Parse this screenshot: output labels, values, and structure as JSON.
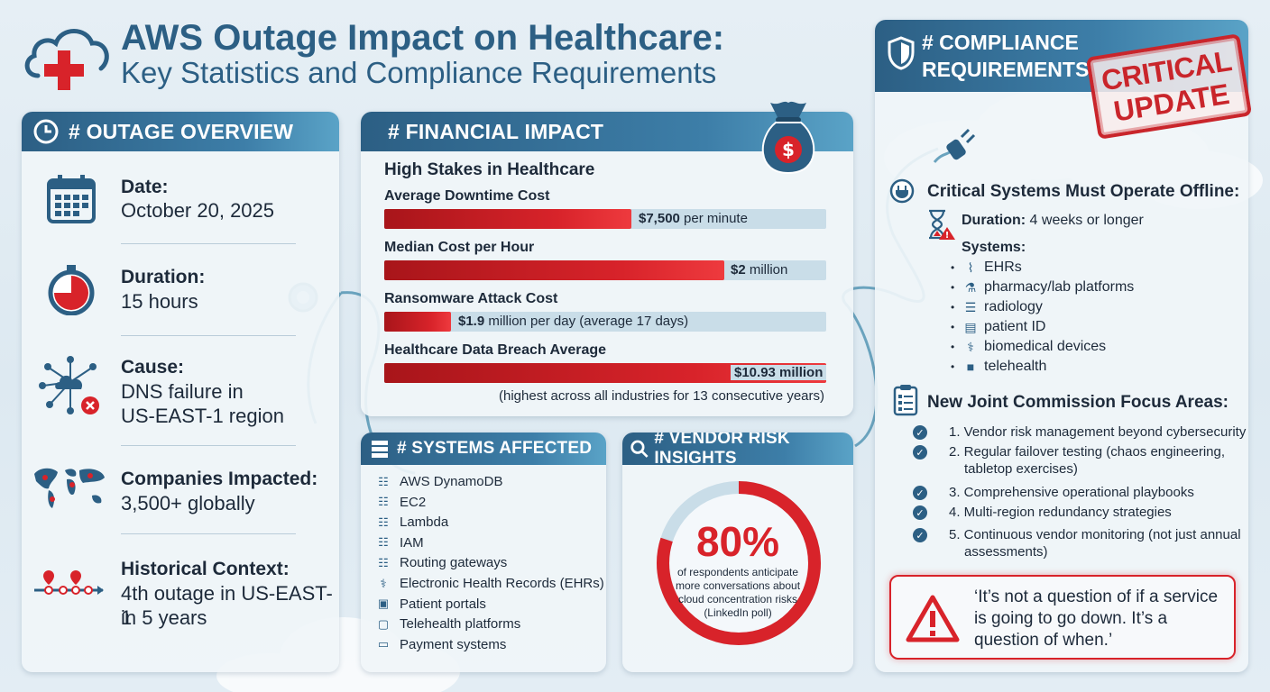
{
  "header": {
    "title_line1": "AWS Outage Impact on Healthcare:",
    "title_line2": "Key Statistics and Compliance Requirements"
  },
  "overview": {
    "heading": "# OUTAGE OVERVIEW",
    "items": [
      {
        "label": "Date:",
        "value": "October 20, 2025",
        "icon": "calendar-icon"
      },
      {
        "label": "Duration:",
        "value": "15 hours",
        "icon": "stopwatch-icon"
      },
      {
        "label": "Cause:",
        "value_line1": "DNS failure in",
        "value_line2": "US-EAST-1 region",
        "icon": "cloud-network-error-icon"
      },
      {
        "label": "Companies Impacted:",
        "value": "3,500+ globally",
        "icon": "world-map-icon"
      },
      {
        "label": "Historical Context:",
        "value_line1": "4th outage in US-EAST-1",
        "value_line2": "in 5 years",
        "icon": "timeline-pins-icon"
      }
    ]
  },
  "financial": {
    "heading": "# FINANCIAL IMPACT",
    "subheading": "High Stakes in Healthcare",
    "items": [
      {
        "label": "Average Downtime Cost",
        "value_bold": "$7,500",
        "value_rest": " per minute",
        "fill": 0.56
      },
      {
        "label": "Median Cost per Hour",
        "value_bold": "$2",
        "value_rest": " million",
        "fill": 0.77
      },
      {
        "label": "Ransomware Attack Cost",
        "value_bold": "$1.9",
        "value_rest": " million per day (average 17 days)",
        "fill": 0.15
      },
      {
        "label": "Healthcare Data Breach Average",
        "value_bold": "$10.93 million",
        "value_rest": "",
        "fill": 1.0
      }
    ],
    "note": "(highest across all industries for 13 consecutive years)"
  },
  "systems": {
    "heading": "# SYSTEMS AFFECTED",
    "items": [
      {
        "label": "AWS DynamoDB",
        "icon": "network-icon"
      },
      {
        "label": "EC2",
        "icon": "network-icon"
      },
      {
        "label": "Lambda",
        "icon": "network-icon"
      },
      {
        "label": "IAM",
        "icon": "network-icon"
      },
      {
        "label": "Routing gateways",
        "icon": "network-icon"
      },
      {
        "label": "Electronic Health Records (EHRs)",
        "icon": "stethoscope-icon"
      },
      {
        "label": "Patient portals",
        "icon": "portal-icon"
      },
      {
        "label": "Telehealth platforms",
        "icon": "telehealth-icon"
      },
      {
        "label": "Payment systems",
        "icon": "card-icon"
      }
    ]
  },
  "vendor": {
    "heading": "# VENDOR RISK INSIGHTS",
    "percent_text": "80%",
    "percent_value": 80,
    "description_lines": [
      "of respondents anticipate",
      "more conversations about",
      "cloud concentration risks",
      "(LinkedIn poll)"
    ]
  },
  "compliance": {
    "heading_line1": "# COMPLIANCE",
    "heading_line2": "REQUIREMENTS",
    "stamp_line1": "CRITICAL",
    "stamp_line2": "UPDATE",
    "offline_title": "Critical Systems Must Operate Offline:",
    "duration_label": "Duration:",
    "duration_value": " 4 weeks or longer",
    "systems_label": "Systems:",
    "systems": [
      {
        "label": "EHRs",
        "icon": "monitor-pulse-icon"
      },
      {
        "label": "pharmacy/lab platforms",
        "icon": "lab-icon"
      },
      {
        "label": "radiology",
        "icon": "xray-icon"
      },
      {
        "label": "patient ID",
        "icon": "id-card-icon"
      },
      {
        "label": "biomedical devices",
        "icon": "stethoscope-icon"
      },
      {
        "label": "telehealth",
        "icon": "video-icon"
      }
    ],
    "focus_title": "New Joint Commission Focus Areas:",
    "focus": [
      {
        "line1": "1. Vendor risk management beyond cybersecurity"
      },
      {
        "line1": "2. Regular failover testing (chaos engineering,",
        "line2": "tabletop exercises)"
      },
      {
        "line1": "3. Comprehensive operational playbooks"
      },
      {
        "line1": "4. Multi-region redundancy strategies"
      },
      {
        "line1": "5. Continuous vendor monitoring (not just annual",
        "line2": "assessments)"
      }
    ],
    "quote_line1": "‘It’s not a question of if a service",
    "quote_line2": "is going to go down. It’s a",
    "quote_line3": "question of when.’"
  },
  "colors": {
    "primary": "#2c5f84",
    "danger": "#d8232a",
    "track": "#c9dde8"
  }
}
